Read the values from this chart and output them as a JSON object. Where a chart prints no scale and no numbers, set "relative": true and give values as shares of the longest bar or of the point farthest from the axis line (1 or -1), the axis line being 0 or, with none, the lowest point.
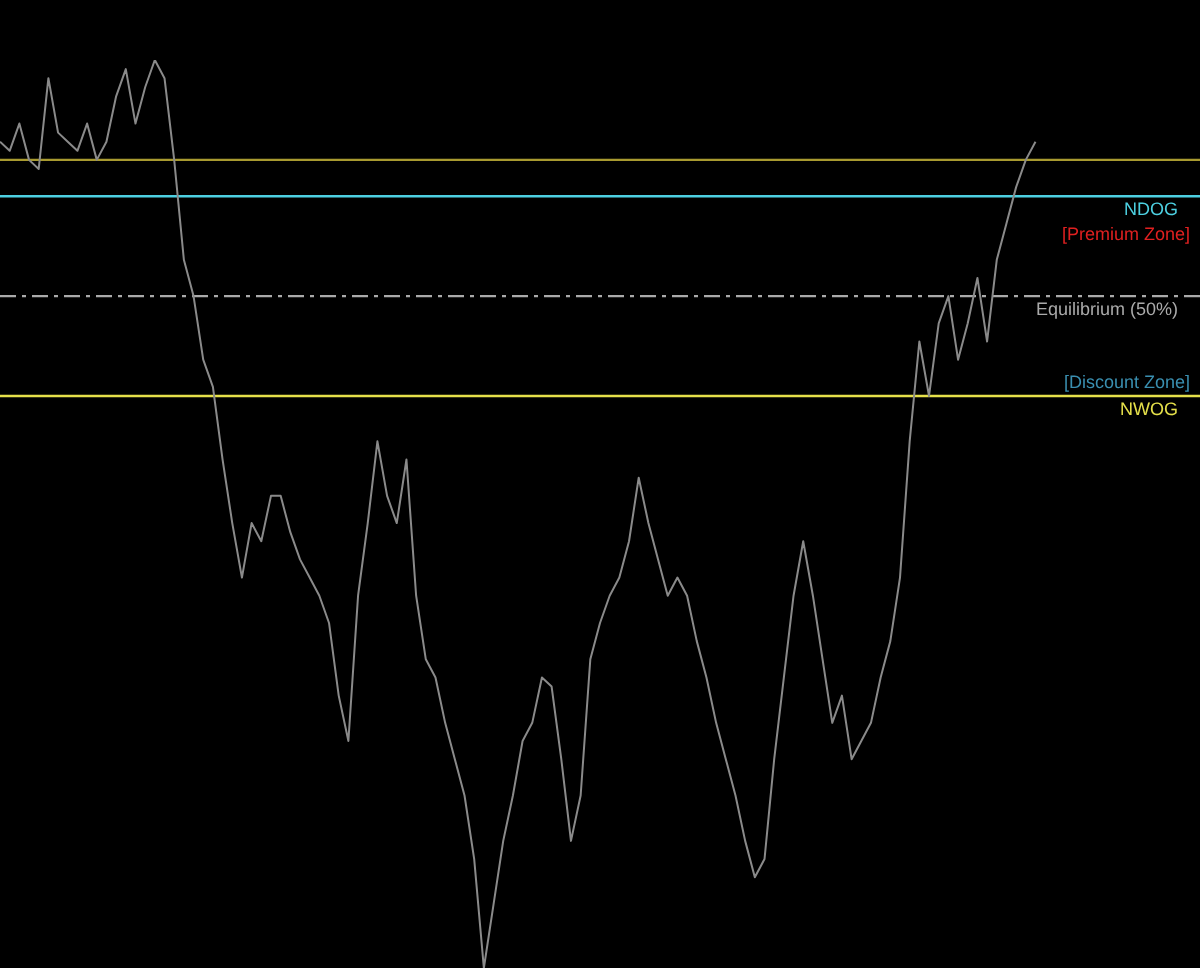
{
  "chart_data": {
    "type": "line",
    "relative": true,
    "categories": [
      null,
      null,
      null,
      null,
      null,
      null,
      null,
      null,
      null,
      null,
      null,
      null,
      null,
      null,
      null,
      null,
      null,
      null,
      null,
      null,
      null,
      null,
      null,
      null,
      null,
      null,
      null,
      null,
      null,
      null,
      null,
      null,
      null,
      null,
      null,
      null,
      null,
      null,
      null,
      null,
      null,
      null,
      null,
      null,
      null,
      null,
      null,
      null,
      null,
      null,
      null,
      null,
      null,
      null,
      null,
      null,
      null,
      null,
      null,
      null,
      null,
      null,
      null,
      null,
      null,
      null,
      null,
      null,
      null,
      null,
      null,
      null,
      null,
      null,
      null,
      null,
      null,
      null,
      null,
      null,
      null,
      null,
      null,
      null,
      null,
      null,
      null,
      null,
      null,
      null,
      null,
      null,
      null,
      null,
      null,
      null,
      null,
      null,
      null,
      null,
      null,
      null,
      null,
      null,
      null,
      null,
      null,
      null,
      null,
      null,
      null,
      null,
      null,
      null,
      null,
      null,
      null,
      null,
      null,
      null,
      null,
      null,
      null,
      null,
      null
    ],
    "series": [
      {
        "color": "#8a8a8a",
        "values": [
          0.91,
          0.9,
          0.93,
          0.89,
          0.88,
          0.98,
          0.92,
          0.91,
          0.9,
          0.93,
          0.89,
          0.91,
          0.96,
          0.99,
          0.93,
          0.97,
          1,
          0.98,
          0.89,
          0.78,
          0.74,
          0.67,
          0.64,
          0.56,
          0.49,
          0.43,
          0.49,
          0.47,
          0.52,
          0.52,
          0.48,
          0.45,
          0.43,
          0.41,
          0.38,
          0.3,
          0.25,
          0.41,
          0.49,
          0.58,
          0.52,
          0.49,
          0.56,
          0.41,
          0.34,
          0.32,
          0.27,
          0.23,
          0.19,
          0.12,
          0,
          0.07,
          0.14,
          0.19,
          0.25,
          0.27,
          0.32,
          0.31,
          0.23,
          0.14,
          0.19,
          0.34,
          0.38,
          0.41,
          0.43,
          0.47,
          0.54,
          0.49,
          0.45,
          0.41,
          0.43,
          0.41,
          0.36,
          0.32,
          0.27,
          0.23,
          0.19,
          0.14,
          0.1,
          0.12,
          0.23,
          0.32,
          0.41,
          0.47,
          0.41,
          0.34,
          0.27,
          0.3,
          0.23,
          0.25,
          0.27,
          0.32,
          0.36,
          0.43,
          0.58,
          0.69,
          0.63,
          0.71,
          0.74,
          0.67,
          0.71,
          0.76,
          0.69,
          0.78,
          0.82,
          0.86,
          0.89,
          0.91,
          null,
          null,
          null,
          null,
          null,
          null,
          null,
          null,
          null,
          null,
          null,
          null,
          null,
          null,
          null,
          null,
          null
        ]
      }
    ],
    "ref_lines": [
      {
        "axis": "y",
        "value": 0.89,
        "label": null,
        "color": "#a89a30",
        "line_style": "solid"
      },
      {
        "axis": "y",
        "value": 0.85,
        "label": "NDOG",
        "color": "#4dd0e1",
        "line_style": "solid"
      },
      {
        "axis": "y",
        "value": 0.74,
        "label": "Equilibrium (50%)",
        "color": "#aaaaaa",
        "line_style": "dashed"
      },
      {
        "axis": "y",
        "value": 0.63,
        "label": "NWOG",
        "color": "#e5e04a",
        "line_style": "solid"
      }
    ],
    "annotations": [
      "[Premium Zone]",
      "[Discount Zone]"
    ],
    "legend": false,
    "grid": false,
    "marker": "none",
    "line_style": "solid"
  }
}
